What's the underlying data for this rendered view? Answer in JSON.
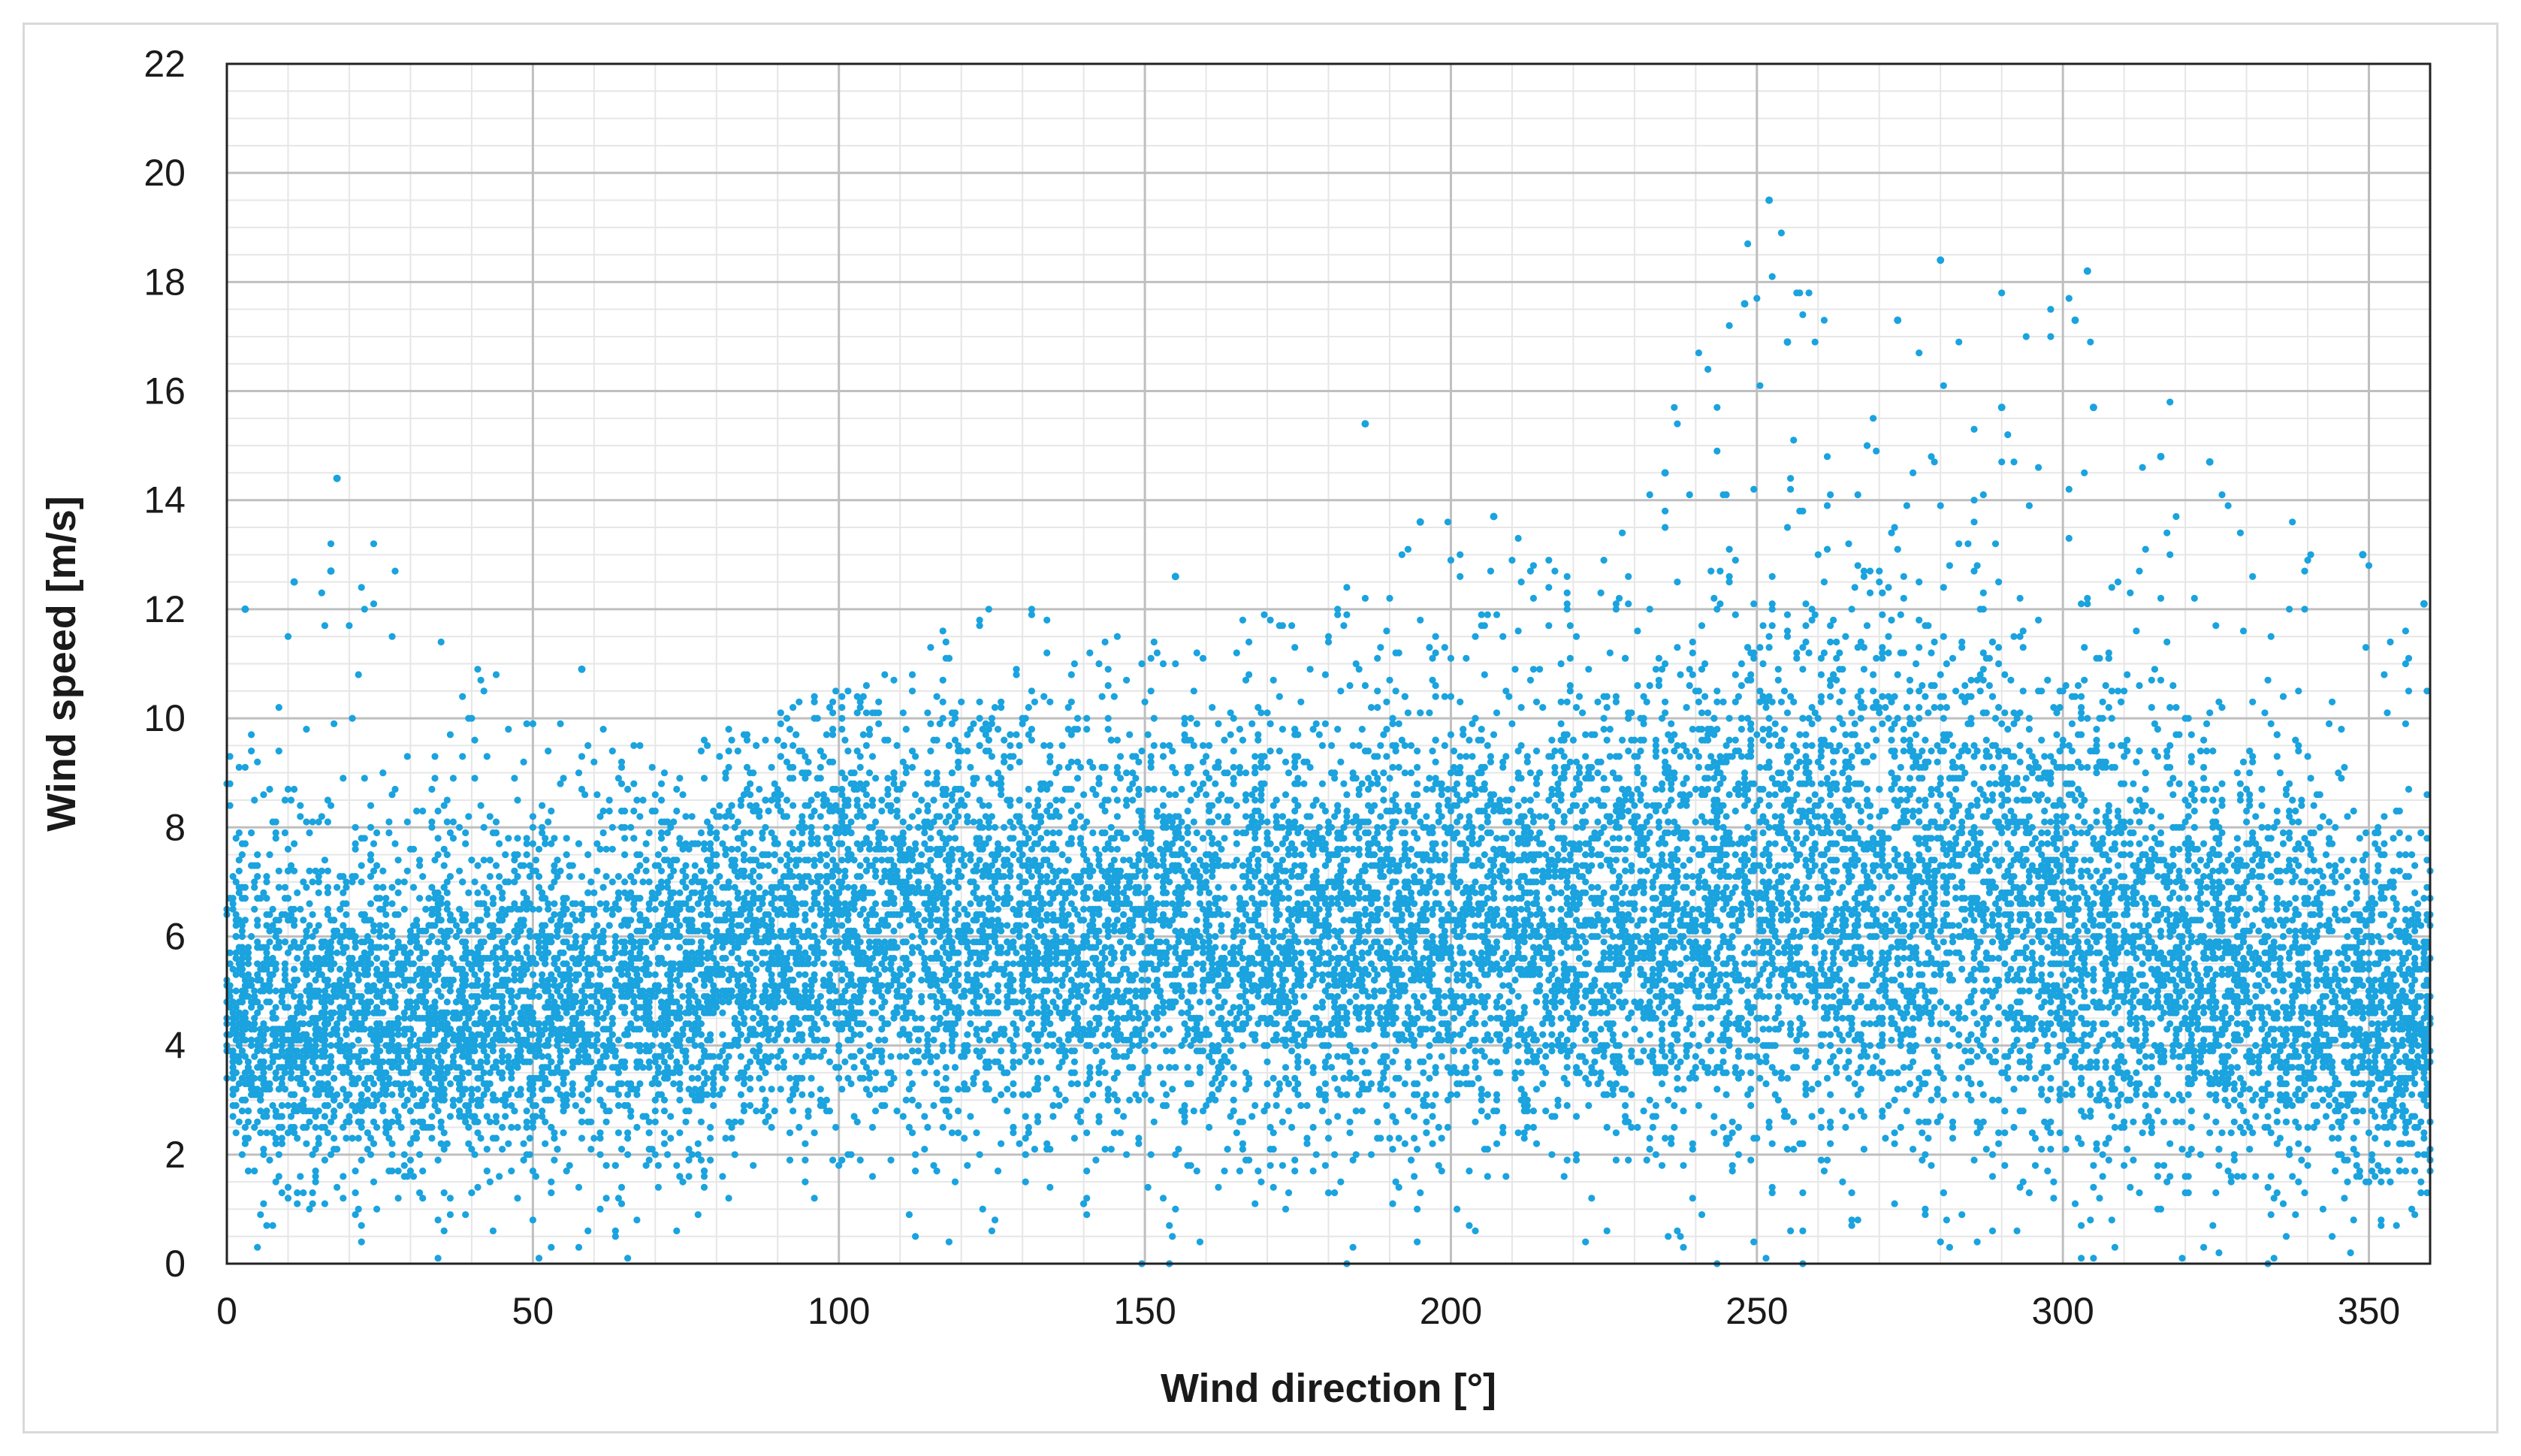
{
  "chart_data": {
    "type": "scatter",
    "xlabel": "Wind direction [°]",
    "ylabel": "Wind speed [m/s]",
    "xlim": [
      0,
      360
    ],
    "ylim": [
      0,
      22
    ],
    "x_ticks": [
      "0",
      "50",
      "100",
      "150",
      "200",
      "250",
      "300",
      "350"
    ],
    "y_ticks": [
      "0",
      "2",
      "4",
      "6",
      "8",
      "10",
      "12",
      "14",
      "16",
      "18",
      "20",
      "22"
    ],
    "grid": true,
    "minor_grid": true,
    "legend": "none",
    "marker_color": "#1aa3de",
    "series_color_name": "light blue",
    "density_profile": [
      {
        "direction": 0,
        "median_speed": 4.4,
        "spread": 1.3,
        "upper_extreme": 9.5
      },
      {
        "direction": 20,
        "median_speed": 4.4,
        "spread": 1.4,
        "upper_extreme": 14.4
      },
      {
        "direction": 50,
        "median_speed": 4.6,
        "spread": 1.5,
        "upper_extreme": 10.1
      },
      {
        "direction": 75,
        "median_speed": 5.3,
        "spread": 1.6,
        "upper_extreme": 9.5
      },
      {
        "direction": 100,
        "median_speed": 6.0,
        "spread": 1.7,
        "upper_extreme": 10.6
      },
      {
        "direction": 125,
        "median_speed": 6.0,
        "spread": 1.8,
        "upper_extreme": 12.2
      },
      {
        "direction": 150,
        "median_speed": 5.8,
        "spread": 1.8,
        "upper_extreme": 11.5
      },
      {
        "direction": 175,
        "median_speed": 5.9,
        "spread": 1.8,
        "upper_extreme": 12.2
      },
      {
        "direction": 200,
        "median_speed": 6.0,
        "spread": 1.8,
        "upper_extreme": 13.7
      },
      {
        "direction": 225,
        "median_speed": 6.1,
        "spread": 1.9,
        "upper_extreme": 13.0
      },
      {
        "direction": 250,
        "median_speed": 6.6,
        "spread": 2.2,
        "upper_extreme": 19.5
      },
      {
        "direction": 275,
        "median_speed": 6.7,
        "spread": 2.3,
        "upper_extreme": 17.3
      },
      {
        "direction": 300,
        "median_speed": 6.3,
        "spread": 2.1,
        "upper_extreme": 18.2
      },
      {
        "direction": 325,
        "median_speed": 5.3,
        "spread": 1.8,
        "upper_extreme": 14.8
      },
      {
        "direction": 350,
        "median_speed": 4.5,
        "spread": 1.5,
        "upper_extreme": 13.0
      },
      {
        "direction": 360,
        "median_speed": 4.4,
        "spread": 1.4,
        "upper_extreme": 12.1
      }
    ],
    "extreme_points": [
      {
        "x": 18,
        "y": 14.4
      },
      {
        "x": 17,
        "y": 12.7
      },
      {
        "x": 11,
        "y": 12.5
      },
      {
        "x": 3,
        "y": 12.0
      },
      {
        "x": 58,
        "y": 10.9
      },
      {
        "x": 155,
        "y": 12.6
      },
      {
        "x": 186,
        "y": 15.4
      },
      {
        "x": 195,
        "y": 13.6
      },
      {
        "x": 207,
        "y": 13.7
      },
      {
        "x": 235,
        "y": 14.5
      },
      {
        "x": 248,
        "y": 17.6
      },
      {
        "x": 252,
        "y": 19.5
      },
      {
        "x": 255,
        "y": 16.9
      },
      {
        "x": 273,
        "y": 17.3
      },
      {
        "x": 280,
        "y": 18.4
      },
      {
        "x": 290,
        "y": 15.7
      },
      {
        "x": 302,
        "y": 17.3
      },
      {
        "x": 304,
        "y": 18.2
      },
      {
        "x": 305,
        "y": 15.7
      },
      {
        "x": 316,
        "y": 14.8
      },
      {
        "x": 324,
        "y": 14.7
      },
      {
        "x": 349,
        "y": 13.0
      },
      {
        "x": 359,
        "y": 12.1
      }
    ]
  }
}
